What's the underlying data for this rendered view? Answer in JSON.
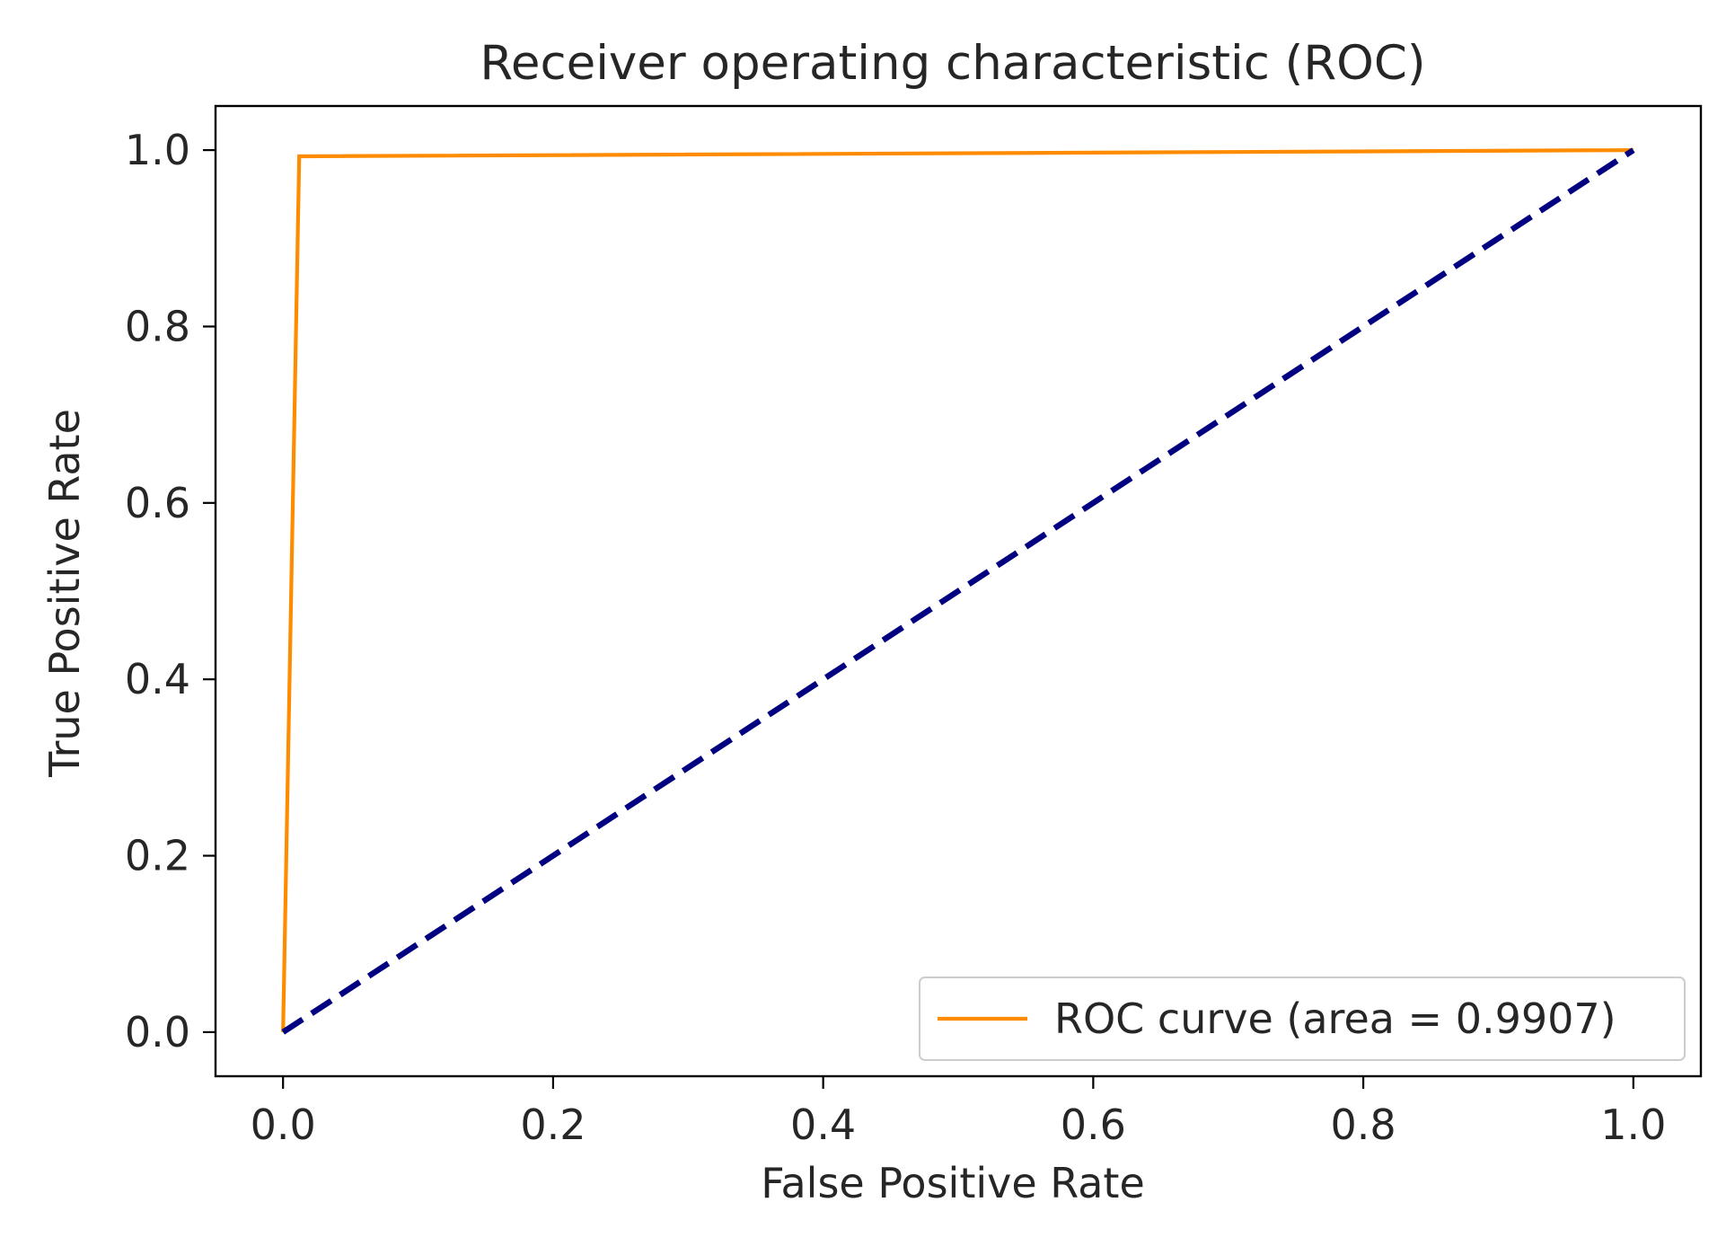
{
  "chart_data": {
    "type": "line",
    "title": "Receiver operating characteristic (ROC)",
    "xlabel": "False Positive Rate",
    "ylabel": "True Positive Rate",
    "xlim": [
      -0.05,
      1.05
    ],
    "ylim": [
      -0.05,
      1.05
    ],
    "xticks": [
      0.0,
      0.2,
      0.4,
      0.6,
      0.8,
      1.0
    ],
    "yticks": [
      0.0,
      0.2,
      0.4,
      0.6,
      0.8,
      1.0
    ],
    "xtick_labels": [
      "0.0",
      "0.2",
      "0.4",
      "0.6",
      "0.8",
      "1.0"
    ],
    "ytick_labels": [
      "0.0",
      "0.2",
      "0.4",
      "0.6",
      "0.8",
      "1.0"
    ],
    "grid": false,
    "legend_position": "lower right",
    "series": [
      {
        "name": "ROC curve (area = 0.9907)",
        "color": "#ff8c00",
        "style": "solid",
        "x": [
          0.0,
          0.012,
          1.0
        ],
        "y": [
          0.0,
          0.993,
          1.0
        ]
      },
      {
        "color": "#000080",
        "style": "dashed",
        "x": [
          0.0,
          1.0
        ],
        "y": [
          0.0,
          1.0
        ]
      }
    ]
  }
}
